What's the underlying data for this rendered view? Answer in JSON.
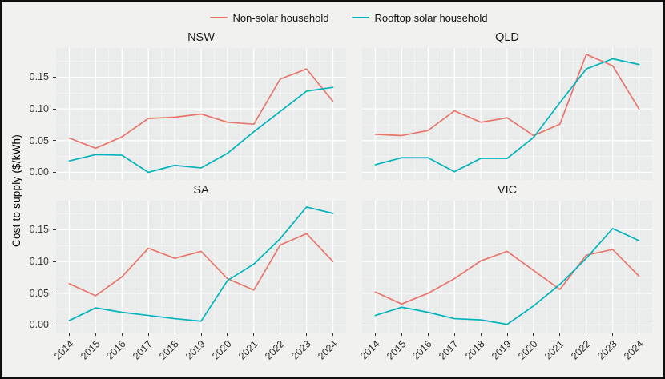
{
  "legend": {
    "items": [
      {
        "label": "Non-solar household",
        "color": "#e8756b"
      },
      {
        "label": "Rooftop solar household",
        "color": "#00b4bc"
      }
    ]
  },
  "y_axis": {
    "title": "Cost to supply ($/kWh)",
    "ticks": [
      {
        "label": "0.00",
        "v": 0
      },
      {
        "label": "0.05",
        "v": 0.05
      },
      {
        "label": "0.10",
        "v": 0.1
      },
      {
        "label": "0.15",
        "v": 0.15
      }
    ],
    "minor": [
      0.025,
      0.075,
      0.125,
      0.175
    ]
  },
  "x_axis": {
    "ticks": [
      "2014",
      "2015",
      "2016",
      "2017",
      "2018",
      "2019",
      "2020",
      "2021",
      "2022",
      "2023",
      "2024"
    ]
  },
  "chart_data": [
    {
      "type": "line",
      "facet": "NSW",
      "x": [
        2014,
        2015,
        2016,
        2017,
        2018,
        2019,
        2020,
        2021,
        2022,
        2023,
        2024
      ],
      "ylim": [
        -0.012,
        0.196
      ],
      "series": [
        {
          "name": "Non-solar household",
          "color": "#e8756b",
          "values": [
            0.054,
            0.038,
            0.056,
            0.085,
            0.087,
            0.092,
            0.079,
            0.076,
            0.147,
            0.163,
            0.112
          ]
        },
        {
          "name": "Rooftop solar household",
          "color": "#00b4bc",
          "values": [
            0.018,
            0.028,
            0.027,
            0.0,
            0.011,
            0.007,
            0.03,
            0.064,
            0.096,
            0.128,
            0.134
          ]
        }
      ]
    },
    {
      "type": "line",
      "facet": "QLD",
      "x": [
        2014,
        2015,
        2016,
        2017,
        2018,
        2019,
        2020,
        2021,
        2022,
        2023,
        2024
      ],
      "ylim": [
        -0.012,
        0.196
      ],
      "series": [
        {
          "name": "Non-solar household",
          "color": "#e8756b",
          "values": [
            0.06,
            0.058,
            0.066,
            0.097,
            0.079,
            0.086,
            0.058,
            0.076,
            0.186,
            0.168,
            0.1
          ]
        },
        {
          "name": "Rooftop solar household",
          "color": "#00b4bc",
          "values": [
            0.012,
            0.023,
            0.023,
            0.001,
            0.022,
            0.022,
            0.055,
            0.11,
            0.163,
            0.179,
            0.17
          ]
        }
      ]
    },
    {
      "type": "line",
      "facet": "SA",
      "x": [
        2014,
        2015,
        2016,
        2017,
        2018,
        2019,
        2020,
        2021,
        2022,
        2023,
        2024
      ],
      "ylim": [
        -0.012,
        0.196
      ],
      "series": [
        {
          "name": "Non-solar household",
          "color": "#e8756b",
          "values": [
            0.065,
            0.046,
            0.076,
            0.121,
            0.105,
            0.116,
            0.073,
            0.055,
            0.126,
            0.144,
            0.1
          ]
        },
        {
          "name": "Rooftop solar household",
          "color": "#00b4bc",
          "values": [
            0.007,
            0.027,
            0.02,
            0.015,
            0.01,
            0.006,
            0.07,
            0.096,
            0.136,
            0.186,
            0.176
          ]
        }
      ]
    },
    {
      "type": "line",
      "facet": "VIC",
      "x": [
        2014,
        2015,
        2016,
        2017,
        2018,
        2019,
        2020,
        2021,
        2022,
        2023,
        2024
      ],
      "ylim": [
        -0.012,
        0.196
      ],
      "series": [
        {
          "name": "Non-solar household",
          "color": "#e8756b",
          "values": [
            0.052,
            0.033,
            0.05,
            0.073,
            0.101,
            0.116,
            0.086,
            0.056,
            0.11,
            0.119,
            0.077
          ]
        },
        {
          "name": "Rooftop solar household",
          "color": "#00b4bc",
          "values": [
            0.015,
            0.028,
            0.02,
            0.01,
            0.008,
            0.001,
            0.03,
            0.064,
            0.105,
            0.152,
            0.133
          ]
        }
      ]
    }
  ]
}
